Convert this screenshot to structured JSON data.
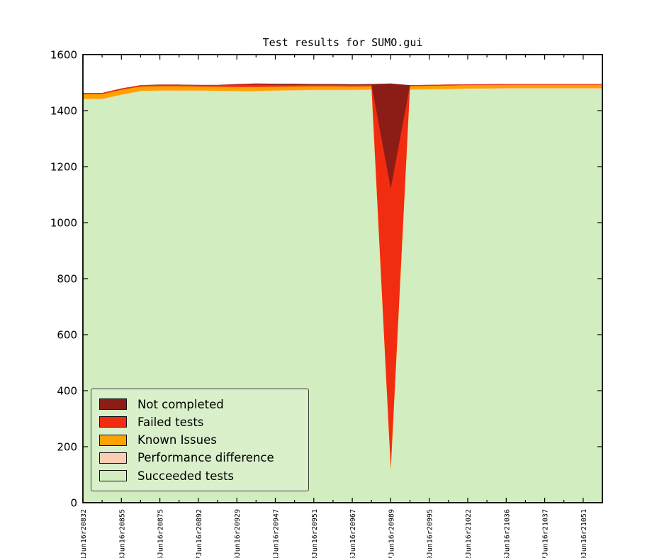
{
  "chart_data": {
    "type": "area",
    "stacked": true,
    "title": "Test results for SUMO.gui",
    "xlabel": "",
    "ylabel": "",
    "ylim": [
      0,
      1600
    ],
    "yticks": [
      0,
      200,
      400,
      600,
      800,
      1000,
      1200,
      1400,
      1600
    ],
    "grid": false,
    "x_tick_labels": [
      "01Jun16r20832",
      "03Jun16r20855",
      "05Jun16r20875",
      "07Jun16r20892",
      "09Jun16r20929",
      "11Jun16r20947",
      "13Jun16r20951",
      "15Jun16r20967",
      "17Jun16r20989",
      "19Jun16r20995",
      "22Jun16r21022",
      "25Jun16r21036",
      "27Jun16r21037",
      "29Jun16r21051"
    ],
    "x_tick_label_rotation": 90,
    "series": [
      {
        "name": "Succeeded tests",
        "color": "#d2edc0",
        "values": [
          1440,
          1440,
          1455,
          1468,
          1470,
          1470,
          1470,
          1469,
          1468,
          1468,
          1470,
          1471,
          1472,
          1472,
          1472,
          1473,
          108,
          1473,
          1474,
          1475,
          1477,
          1477,
          1478,
          1478,
          1478,
          1478,
          1478,
          1478
        ]
      },
      {
        "name": "Performance difference",
        "color": "#fbcdb5",
        "values": [
          2,
          2,
          2,
          2,
          2,
          2,
          2,
          2,
          2,
          2,
          2,
          2,
          2,
          2,
          2,
          2,
          2,
          2,
          2,
          2,
          2,
          2,
          2,
          2,
          2,
          2,
          2,
          2
        ]
      },
      {
        "name": "Known Issues",
        "color": "#fda301",
        "values": [
          17,
          17,
          17,
          16,
          15,
          15,
          14,
          14,
          14,
          14,
          13,
          13,
          13,
          13,
          12,
          12,
          12,
          12,
          12,
          12,
          12,
          12,
          12,
          12,
          12,
          12,
          12,
          12
        ]
      },
      {
        "name": "Failed tests",
        "color": "#f22c11",
        "values": [
          4,
          4,
          5,
          5,
          5,
          5,
          5,
          6,
          9,
          9,
          7,
          6,
          5,
          5,
          5,
          5,
          1000,
          4,
          4,
          4,
          3,
          3,
          3,
          3,
          3,
          3,
          3,
          3
        ]
      },
      {
        "name": "Not completed",
        "color": "#8b1c16",
        "values": [
          0,
          0,
          0,
          0,
          1,
          1,
          1,
          1,
          2,
          4,
          4,
          4,
          3,
          3,
          3,
          3,
          375,
          0,
          0,
          0,
          0,
          0,
          0,
          0,
          0,
          0,
          0,
          0
        ]
      }
    ],
    "legend": {
      "position": "lower left",
      "entries": [
        "Not completed",
        "Failed tests",
        "Known Issues",
        "Performance difference",
        "Succeeded tests"
      ]
    }
  }
}
